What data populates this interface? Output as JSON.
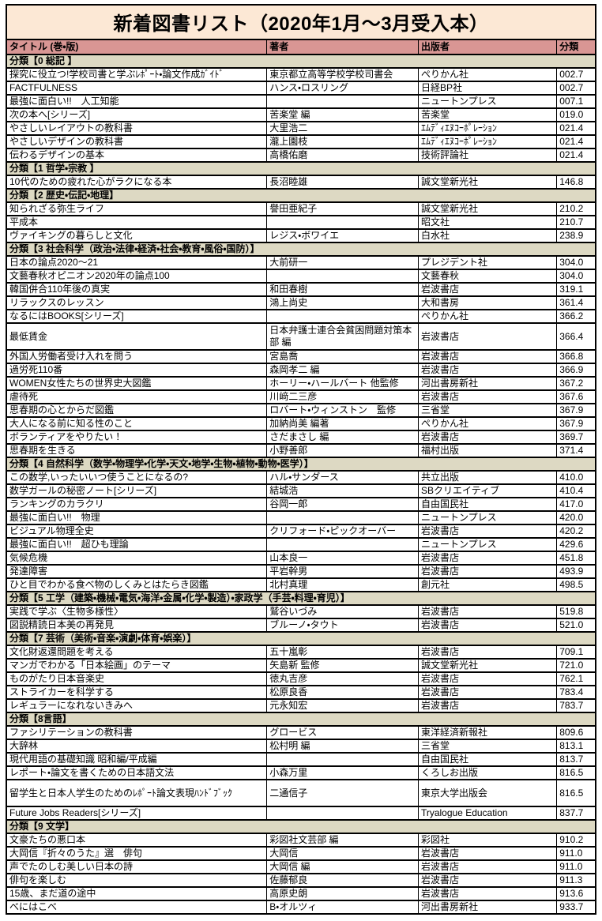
{
  "page_title": "新着図書リスト（2020年1月～3月受入本）",
  "colors": {
    "title_bg": "#FCE8D5",
    "header_bg": "#D99694",
    "category_bg": "#DDD9C3",
    "border": "#000000"
  },
  "table": {
    "columns": [
      "タイトル (巻・版)",
      "著者",
      "出版者",
      "分類"
    ],
    "sections": [
      {
        "category": "分類【0 総記 】",
        "books": [
          {
            "title": "探究に役立つ!学校司書と学ぶﾚﾎﾟｰﾄ・論文作成ｶﾞｲﾄﾞ",
            "author": "東京都立高等学校学校司書会",
            "publisher": "ぺりかん社",
            "classification": "002.7"
          },
          {
            "title": "FACTFULNESS",
            "author": "ハンス・ロスリング",
            "publisher": "日経BP社",
            "classification": "002.7"
          },
          {
            "title": "最強に面白い!!　人工知能",
            "author": "",
            "publisher": "ニュートンプレス",
            "classification": "007.1"
          },
          {
            "title": "次の本へ[シリーズ]",
            "author": "苦楽堂 編",
            "publisher": "苦楽堂",
            "classification": "019.0"
          },
          {
            "title": "やさしいレイアウトの教科書",
            "author": "大里浩二",
            "publisher": "ｴﾑﾃﾞｨｴﾇｺｰﾎﾟﾚｰｼｮﾝ",
            "classification": "021.4"
          },
          {
            "title": "やさしいデザインの教科書",
            "author": "瀧上園枝",
            "publisher": "ｴﾑﾃﾞｨｴﾇｺｰﾎﾟﾚｰｼｮﾝ",
            "classification": "021.4"
          },
          {
            "title": "伝わるデザインの基本",
            "author": "高橋佑磨",
            "publisher": "技術評論社",
            "classification": "021.4"
          }
        ]
      },
      {
        "category": "分類【1 哲学・宗教 】",
        "books": [
          {
            "title": "10代のための疲れた心がラクになる本",
            "author": "長沼睦雄",
            "publisher": "誠文堂新光社",
            "classification": "146.8"
          }
        ]
      },
      {
        "category": "分類【2 歴史・伝記・地理】",
        "books": [
          {
            "title": "知られざる弥生ライフ",
            "author": "譽田亜紀子",
            "publisher": "誠文堂新光社",
            "classification": "210.2"
          },
          {
            "title": "平成本",
            "author": "",
            "publisher": "昭文社",
            "classification": "210.7"
          },
          {
            "title": "ヴァイキングの暮らしと文化",
            "author": "レジス・ボワイエ",
            "publisher": "白水社",
            "classification": "238.9"
          }
        ]
      },
      {
        "category": "分類【3  社会科学（政治・法律・経済・社会・教育・風俗・国防）】",
        "books": [
          {
            "title": "日本の論点2020～21",
            "author": "大前研一",
            "publisher": "プレジデント社",
            "classification": "304.0"
          },
          {
            "title": "文藝春秋オピニオン2020年の論点100",
            "author": "",
            "publisher": "文藝春秋",
            "classification": "304.0"
          },
          {
            "title": "韓国併合110年後の真実",
            "author": "和田春樹",
            "publisher": "岩波書店",
            "classification": "319.1"
          },
          {
            "title": "リラックスのレッスン",
            "author": "鴻上尚史",
            "publisher": "大和書房",
            "classification": "361.4"
          },
          {
            "title": "なるにはBOOKS[シリーズ]",
            "author": "",
            "publisher": "ぺりかん社",
            "classification": "366.2"
          },
          {
            "title": "最低賃金",
            "author": "日本弁護士連合会貧困問題対策本部 編",
            "publisher": "岩波書店",
            "classification": "366.4",
            "tall": true
          },
          {
            "title": "外国人労働者受け入れを問う",
            "author": "宮島喬",
            "publisher": "岩波書店",
            "classification": "366.8"
          },
          {
            "title": "過労死110番",
            "author": "森岡孝二 編",
            "publisher": "岩波書店",
            "classification": "366.9"
          },
          {
            "title": "WOMEN女性たちの世界史大図鑑",
            "author": "ホーリー・ハールバート 他監修",
            "publisher": "河出書房新社",
            "classification": "367.2"
          },
          {
            "title": "虐待死",
            "author": "川﨑二三彦",
            "publisher": "岩波書店",
            "classification": "367.6"
          },
          {
            "title": "思春期の心とからだ図鑑",
            "author": "ロバート・ウィンストン　監修",
            "publisher": "三省堂",
            "classification": "367.9"
          },
          {
            "title": "大人になる前に知る性のこと",
            "author": "加納尚美 編著",
            "publisher": "ぺりかん社",
            "classification": "367.9"
          },
          {
            "title": "ボランティアをやりたい！",
            "author": "さだまさし 編",
            "publisher": "岩波書店",
            "classification": "369.7"
          },
          {
            "title": "思春期を生きる",
            "author": "小野善郎",
            "publisher": "福村出版",
            "classification": "371.4"
          }
        ]
      },
      {
        "category": "分類【4  自然科学（数学・物理学・化学・天文・地学・生物・植物・動物・医学）】",
        "books": [
          {
            "title": "この数学,いったいいつ使うことになるの?",
            "author": "ハル・サンダース",
            "publisher": "共立出版",
            "classification": "410.0"
          },
          {
            "title": "数学ガールの秘密ノート[シリーズ]",
            "author": "結城浩",
            "publisher": "SBクリエイティブ",
            "classification": "410.4"
          },
          {
            "title": "ランキングのカラクリ",
            "author": "谷岡一郎",
            "publisher": "自由国民社",
            "classification": "417.0"
          },
          {
            "title": "最強に面白い!!　物理",
            "author": "",
            "publisher": "ニュートンプレス",
            "classification": "420.0"
          },
          {
            "title": "ビジュアル物理全史",
            "author": "クリフォード・ピックオーバー",
            "publisher": "岩波書店",
            "classification": "420.2"
          },
          {
            "title": "最強に面白い!!　超ひも理論",
            "author": "",
            "publisher": "ニュートンプレス",
            "classification": "429.6"
          },
          {
            "title": "気候危機",
            "author": "山本良一",
            "publisher": "岩波書店",
            "classification": "451.8"
          },
          {
            "title": "発達障害",
            "author": "平岩幹男",
            "publisher": "岩波書店",
            "classification": "493.9"
          },
          {
            "title": "ひと目でわかる食べ物のしくみとはたらき図鑑",
            "author": "北村真理",
            "publisher": "創元社",
            "classification": "498.5"
          }
        ]
      },
      {
        "category": "分類【5  工学（建築・機械・電気・海洋・金属・化学・製造）・家政学（手芸・料理・育児）】",
        "books": [
          {
            "title": "実践で学ぶ〈生物多様性〉",
            "author": "鷲谷いづみ",
            "publisher": "岩波書店",
            "classification": "519.8"
          },
          {
            "title": "図説精読日本美の再発見",
            "author": "ブルーノ・タウト",
            "publisher": "岩波書店",
            "classification": "521.0"
          }
        ]
      },
      {
        "category": "分類【7  芸術（美術・音楽・演劇・体育・娯楽）】",
        "books": [
          {
            "title": "文化財返還問題を考える",
            "author": "五十嵐彰",
            "publisher": "岩波書店",
            "classification": "709.1"
          },
          {
            "title": "マンガでわかる「日本絵画」のテーマ",
            "author": "矢島新 監修",
            "publisher": "誠文堂新光社",
            "classification": "721.0"
          },
          {
            "title": "ものがたり日本音楽史",
            "author": "徳丸吉彦",
            "publisher": "岩波書店",
            "classification": "762.1"
          },
          {
            "title": "ストライカーを科学する",
            "author": "松原良香",
            "publisher": "岩波書店",
            "classification": "783.4"
          },
          {
            "title": "レギュラーになれないきみへ",
            "author": "元永知宏",
            "publisher": "岩波書店",
            "classification": "783.7"
          }
        ]
      },
      {
        "category": "分類【8言語】",
        "books": [
          {
            "title": "ファシリテーションの教科書",
            "author": "グロービス",
            "publisher": "東洋経済新報社",
            "classification": "809.6"
          },
          {
            "title": "大辞林",
            "author": "松村明 編",
            "publisher": "三省堂",
            "classification": "813.1"
          },
          {
            "title": "現代用語の基礎知識 昭和編/平成編",
            "author": "",
            "publisher": "自由国民社",
            "classification": "813.7"
          },
          {
            "title": "レポート・論文を書くための日本語文法",
            "author": "小森万里",
            "publisher": "くろしお出版",
            "classification": "816.5"
          },
          {
            "title": "留学生と日本人学生のためのﾚﾎﾟｰﾄ論文表現ﾊﾝﾄﾞﾌﾞｯｸ",
            "author": "二通信子",
            "publisher": "東京大学出版会",
            "classification": "816.5",
            "tall": true
          },
          {
            "title": "Future Jobs Readers[シリーズ]",
            "author": "",
            "publisher": "Tryalogue Education",
            "classification": "837.7"
          }
        ]
      },
      {
        "category": "分類【9  文学】",
        "books": [
          {
            "title": "文豪たちの悪口本",
            "author": "彩図社文芸部 編",
            "publisher": "彩図社",
            "classification": "910.2"
          },
          {
            "title": "大岡信『折々のうた』選　俳句",
            "author": "大岡信",
            "publisher": "岩波書店",
            "classification": "911.0"
          },
          {
            "title": "声でたのしむ美しい日本の詩",
            "author": "大岡信 編",
            "publisher": "岩波書店",
            "classification": "911.0"
          },
          {
            "title": "俳句を楽しむ",
            "author": "佐藤郁良",
            "publisher": "岩波書店",
            "classification": "911.3"
          },
          {
            "title": "15歳、まだ道の途中",
            "author": "高原史朗",
            "publisher": "岩波書店",
            "classification": "913.6"
          },
          {
            "title": "べにはこべ",
            "author": "B・オルツィ",
            "publisher": "河出書房新社",
            "classification": "933.7"
          }
        ]
      }
    ]
  }
}
